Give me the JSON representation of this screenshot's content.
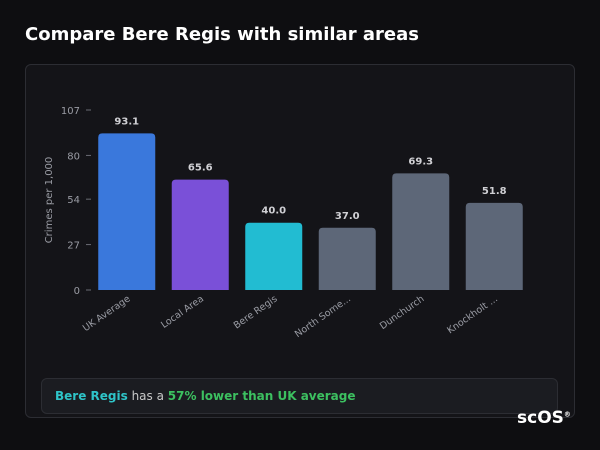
{
  "header": {
    "title": "Compare Bere Regis with similar areas"
  },
  "chart_data": {
    "type": "bar",
    "y_label": "Crimes per 1,000",
    "categories": [
      "UK Average",
      "Local Area",
      "Bere Regis",
      "North Some...",
      "Dunchurch",
      "Knockholt ..."
    ],
    "values": [
      93.1,
      65.6,
      40,
      37,
      69.3,
      51.8
    ],
    "value_labels": [
      "93.1",
      "65.6",
      "40.0",
      "37.0",
      "69.3",
      "51.8"
    ],
    "colors": [
      "#3a78dc",
      "#7a50d8",
      "#22bcd2",
      "#5d6778",
      "#5d6778",
      "#5d6778"
    ],
    "ylim": [
      0,
      107
    ],
    "yticks": [
      0,
      27,
      54,
      80,
      107
    ]
  },
  "note": {
    "place": "Bere Regis",
    "middle": "has a",
    "highlight": "57% lower than UK average"
  },
  "logo": {
    "text": "scOS",
    "mark": "®"
  }
}
